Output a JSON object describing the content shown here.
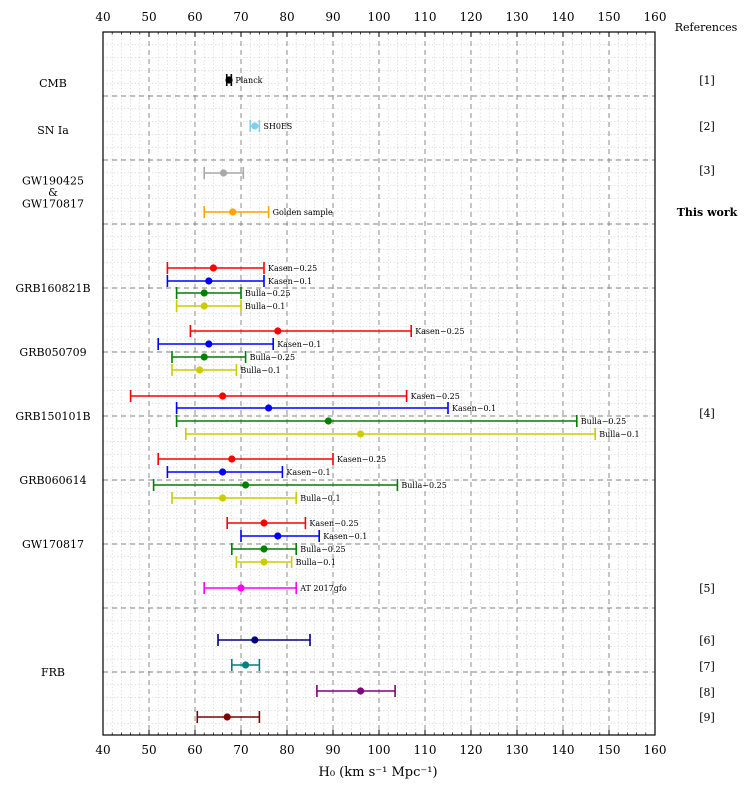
{
  "chart_data": {
    "type": "scatter",
    "xlabel": "H₀ (km s⁻¹ Mpc⁻¹)",
    "xlim": [
      40,
      160
    ],
    "xticks": [
      40,
      50,
      60,
      70,
      80,
      90,
      100,
      110,
      120,
      130,
      140,
      150,
      160
    ],
    "grid": true,
    "references_header": "References",
    "colors": {
      "red": "#ff0000",
      "blue": "#0000ff",
      "green": "#008000",
      "yellow": "#cccc00",
      "black": "#000000",
      "skyblue": "#87ceeb",
      "gray": "#a9a9a9",
      "orange": "#ffa500",
      "magenta": "#ff00ff",
      "navy": "#000080",
      "teal": "#008080",
      "purple": "#800080",
      "maroon": "#800000"
    },
    "groups": [
      "CMB",
      "SN Ia",
      "GW190425\n&\nGW170817",
      "GRB160821B",
      "GRB050709",
      "GRB150101B",
      "GRB060614",
      "GW170817",
      "FRB"
    ],
    "references": [
      "[1]",
      "[2]",
      "[3]",
      "This work",
      "[4]",
      "[5]",
      "[6]",
      "[7]",
      "[8]",
      "[9]"
    ],
    "points": [
      {
        "group": "CMB",
        "label": "Planck",
        "color": "black",
        "value": 67.4,
        "lo": 66.9,
        "hi": 67.9
      },
      {
        "group": "SN Ia",
        "label": "SH0ES",
        "color": "skyblue",
        "value": 73.0,
        "lo": 72.0,
        "hi": 74.0
      },
      {
        "group": "GW190425 & GW170817",
        "label": "",
        "color": "gray",
        "value": 66.2,
        "lo": 62.0,
        "hi": 70.5,
        "reference": "[3]"
      },
      {
        "group": "GW190425 & GW170817",
        "label": "Golden sample",
        "color": "orange",
        "value": 68.2,
        "lo": 62.0,
        "hi": 76.0,
        "reference": "This work"
      },
      {
        "group": "GRB160821B",
        "label": "Kasen−0.25",
        "color": "red",
        "value": 64.0,
        "lo": 54.0,
        "hi": 75.0
      },
      {
        "group": "GRB160821B",
        "label": "Kasen−0.1",
        "color": "blue",
        "value": 63.0,
        "lo": 54.0,
        "hi": 75.0
      },
      {
        "group": "GRB160821B",
        "label": "Bulla−0.25",
        "color": "green",
        "value": 62.0,
        "lo": 56.0,
        "hi": 70.0
      },
      {
        "group": "GRB160821B",
        "label": "Bulla−0.1",
        "color": "yellow",
        "value": 62.0,
        "lo": 56.0,
        "hi": 70.0
      },
      {
        "group": "GRB050709",
        "label": "Kasen−0.25",
        "color": "red",
        "value": 78.0,
        "lo": 59.0,
        "hi": 107.0
      },
      {
        "group": "GRB050709",
        "label": "Kasen−0.1",
        "color": "blue",
        "value": 63.0,
        "lo": 52.0,
        "hi": 77.0
      },
      {
        "group": "GRB050709",
        "label": "Bulla−0.25",
        "color": "green",
        "value": 62.0,
        "lo": 55.0,
        "hi": 71.0
      },
      {
        "group": "GRB050709",
        "label": "Bulla−0.1",
        "color": "yellow",
        "value": 61.0,
        "lo": 55.0,
        "hi": 69.0
      },
      {
        "group": "GRB150101B",
        "label": "Kasen−0.25",
        "color": "red",
        "value": 66.0,
        "lo": 46.0,
        "hi": 106.0
      },
      {
        "group": "GRB150101B",
        "label": "Kasen−0.1",
        "color": "blue",
        "value": 76.0,
        "lo": 56.0,
        "hi": 115.0
      },
      {
        "group": "GRB150101B",
        "label": "Bulla−0.25",
        "color": "green",
        "value": 89.0,
        "lo": 56.0,
        "hi": 143.0
      },
      {
        "group": "GRB150101B",
        "label": "Bulla−0.1",
        "color": "yellow",
        "value": 96.0,
        "lo": 58.0,
        "hi": 147.0
      },
      {
        "group": "GRB060614",
        "label": "Kasen−0.25",
        "color": "red",
        "value": 68.0,
        "lo": 52.0,
        "hi": 90.0
      },
      {
        "group": "GRB060614",
        "label": "Kasen−0.1",
        "color": "blue",
        "value": 66.0,
        "lo": 54.0,
        "hi": 79.0
      },
      {
        "group": "GRB060614",
        "label": "Bulla−0.25",
        "color": "green",
        "value": 71.0,
        "lo": 51.0,
        "hi": 104.0
      },
      {
        "group": "GRB060614",
        "label": "Bulla−0.1",
        "color": "yellow",
        "value": 66.0,
        "lo": 55.0,
        "hi": 82.0
      },
      {
        "group": "GW170817",
        "label": "Kasen−0.25",
        "color": "red",
        "value": 75.0,
        "lo": 67.0,
        "hi": 84.0
      },
      {
        "group": "GW170817",
        "label": "Kasen−0.1",
        "color": "blue",
        "value": 78.0,
        "lo": 70.0,
        "hi": 87.0
      },
      {
        "group": "GW170817",
        "label": "Bulla−0.25",
        "color": "green",
        "value": 75.0,
        "lo": 68.0,
        "hi": 82.0
      },
      {
        "group": "GW170817",
        "label": "Bulla−0.1",
        "color": "yellow",
        "value": 75.0,
        "lo": 69.0,
        "hi": 81.0
      },
      {
        "group": "GW170817",
        "label": "AT 2017gfo",
        "color": "magenta",
        "value": 70.0,
        "lo": 62.0,
        "hi": 82.0,
        "reference": "[5]"
      },
      {
        "group": "FRB",
        "label": "",
        "color": "navy",
        "value": 73.0,
        "lo": 65.0,
        "hi": 85.0,
        "reference": "[6]"
      },
      {
        "group": "FRB",
        "label": "",
        "color": "teal",
        "value": 71.0,
        "lo": 68.0,
        "hi": 74.0,
        "reference": "[7]"
      },
      {
        "group": "FRB",
        "label": "",
        "color": "purple",
        "value": 96.0,
        "lo": 86.5,
        "hi": 103.5,
        "reference": "[8]"
      },
      {
        "group": "FRB",
        "label": "",
        "color": "maroon",
        "value": 67.0,
        "lo": 60.5,
        "hi": 74.0,
        "reference": "[9]"
      }
    ]
  }
}
